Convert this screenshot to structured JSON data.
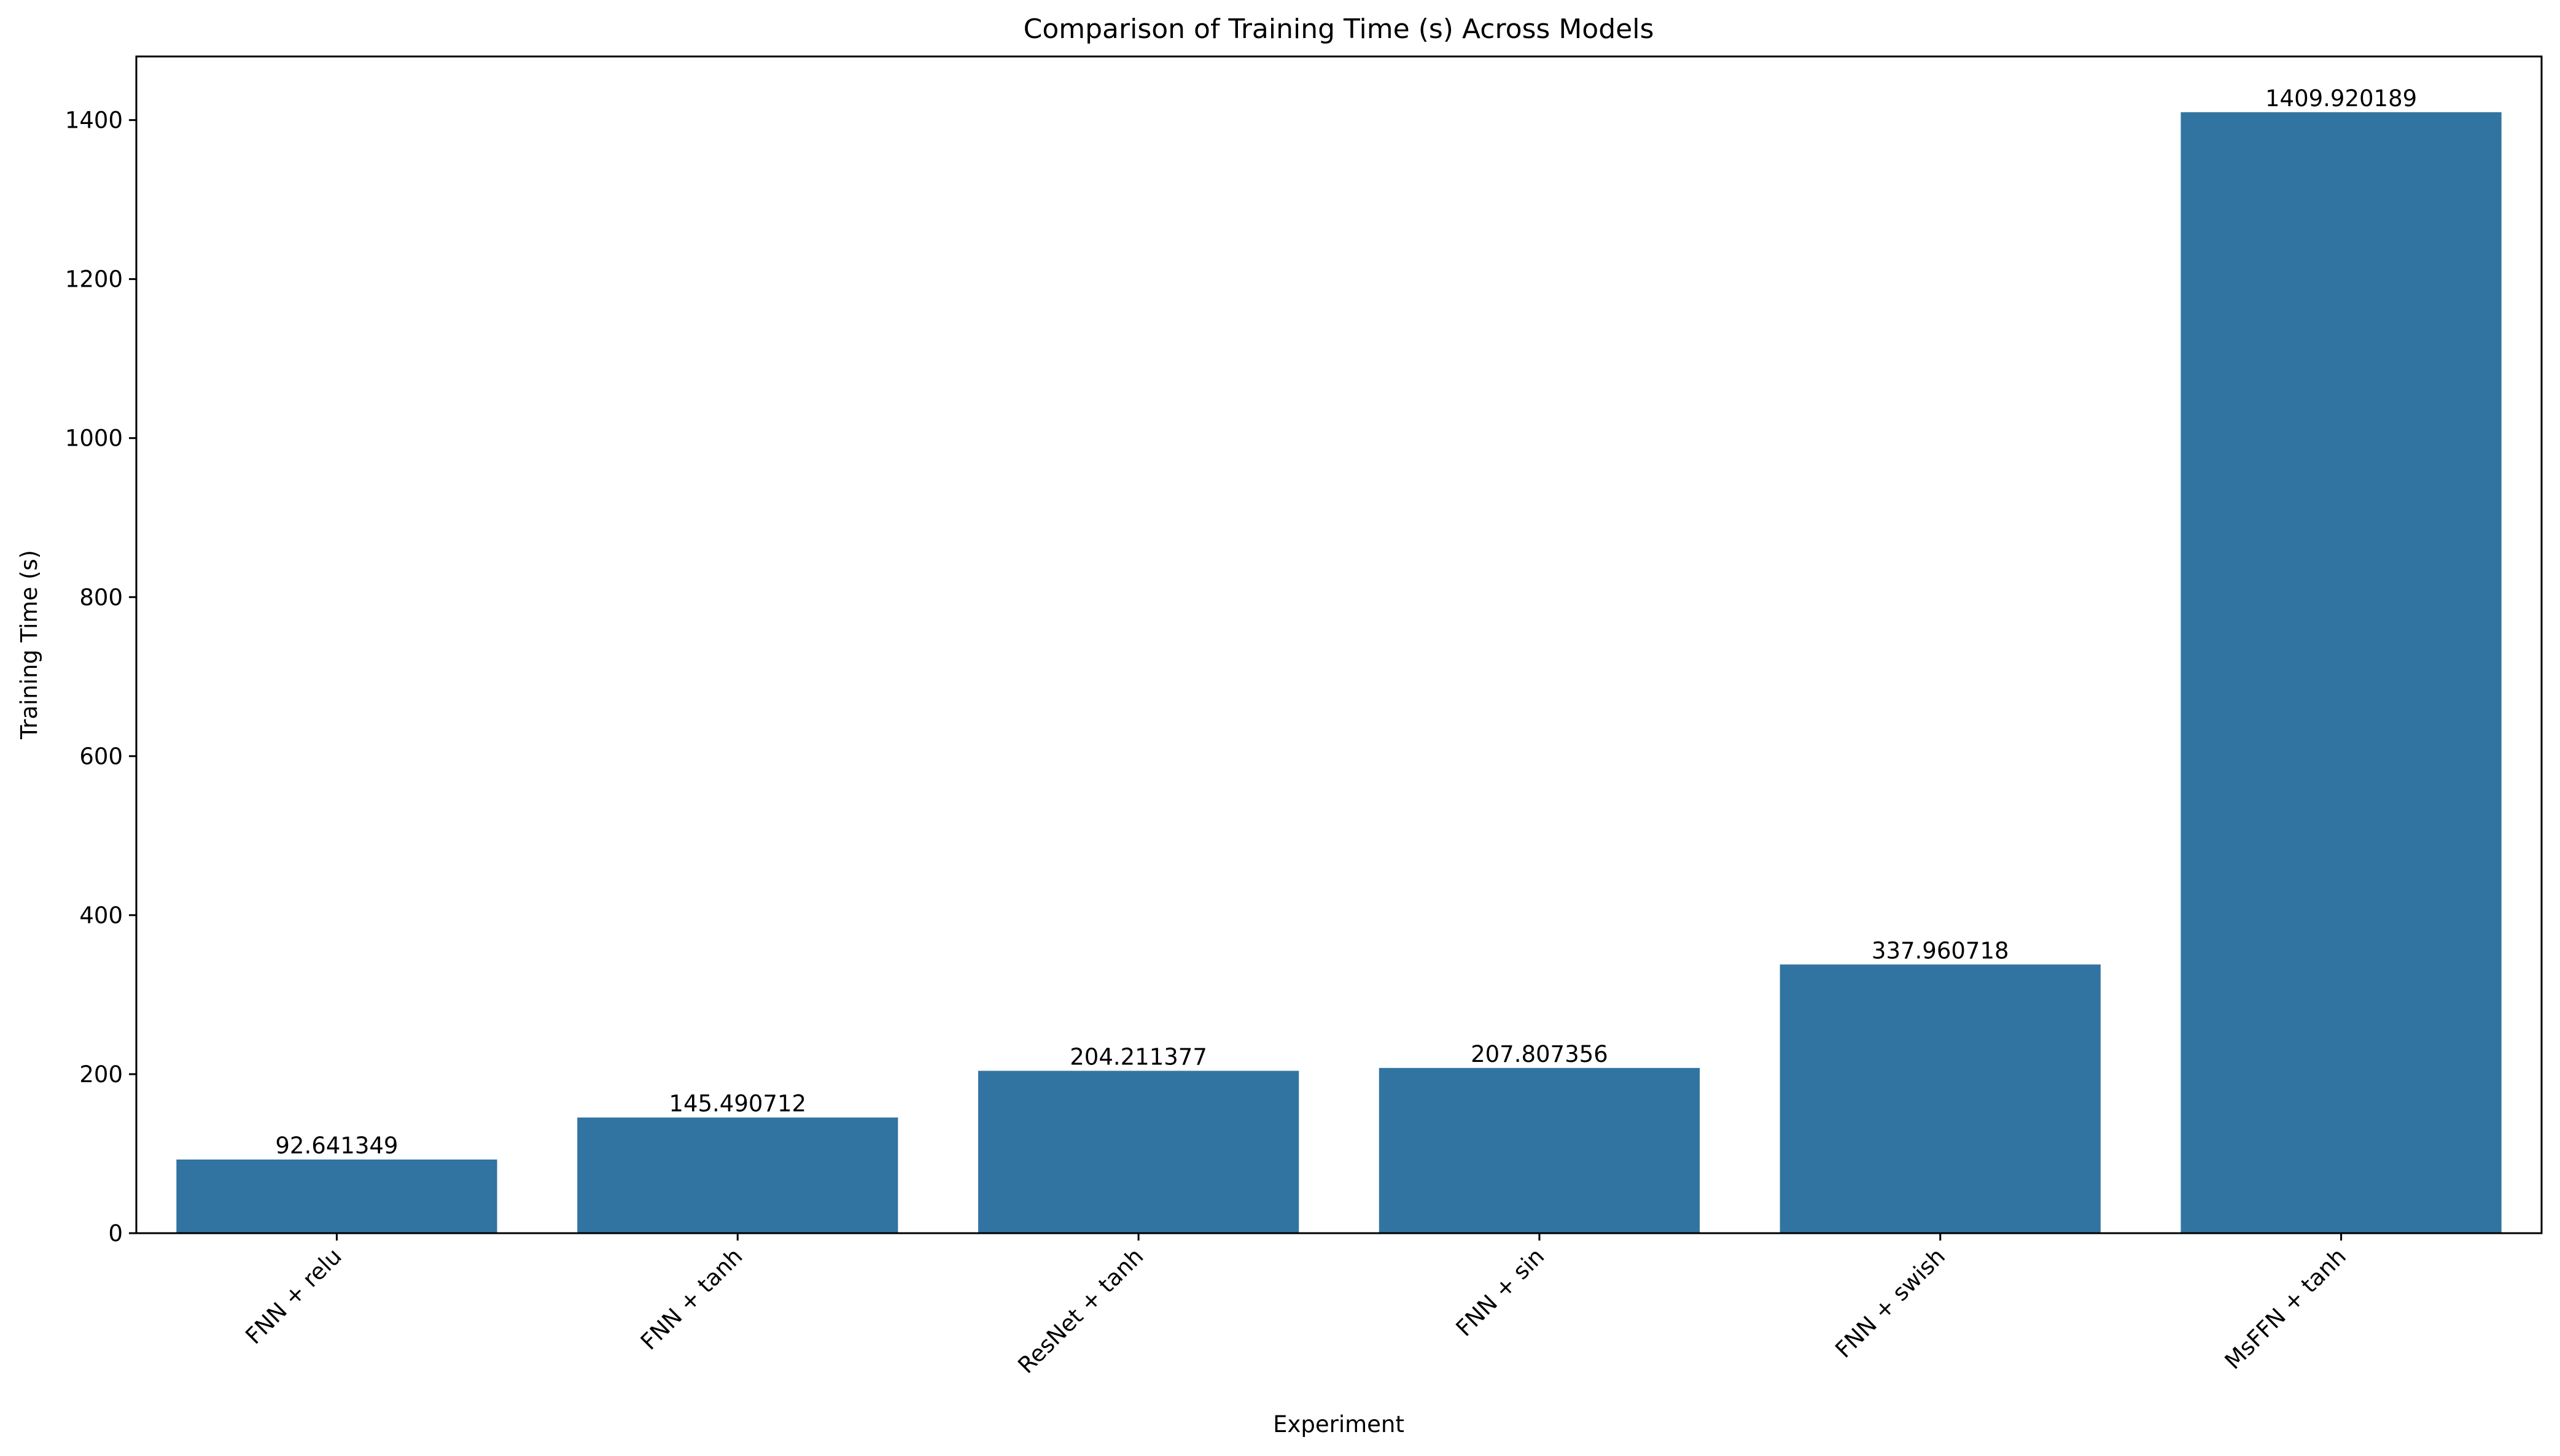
{
  "chart_data": {
    "type": "bar",
    "title": "Comparison of Training Time (s) Across Models",
    "xlabel": "Experiment",
    "ylabel": "Training Time (s)",
    "categories": [
      "FNN + relu",
      "FNN + tanh",
      "ResNet + tanh",
      "FNN + sin",
      "FNN + swish",
      "MsFFN + tanh"
    ],
    "values": [
      92.641349,
      145.490712,
      204.211377,
      207.807356,
      337.960718,
      1409.920189
    ],
    "value_labels": [
      "92.641349",
      "145.490712",
      "204.211377",
      "207.807356",
      "337.960718",
      "1409.920189"
    ],
    "ylim": [
      0,
      1480
    ],
    "yticks": [
      0,
      200,
      400,
      600,
      800,
      1000,
      1200,
      1400
    ],
    "grid": false,
    "bar_color": "#3274a1"
  }
}
